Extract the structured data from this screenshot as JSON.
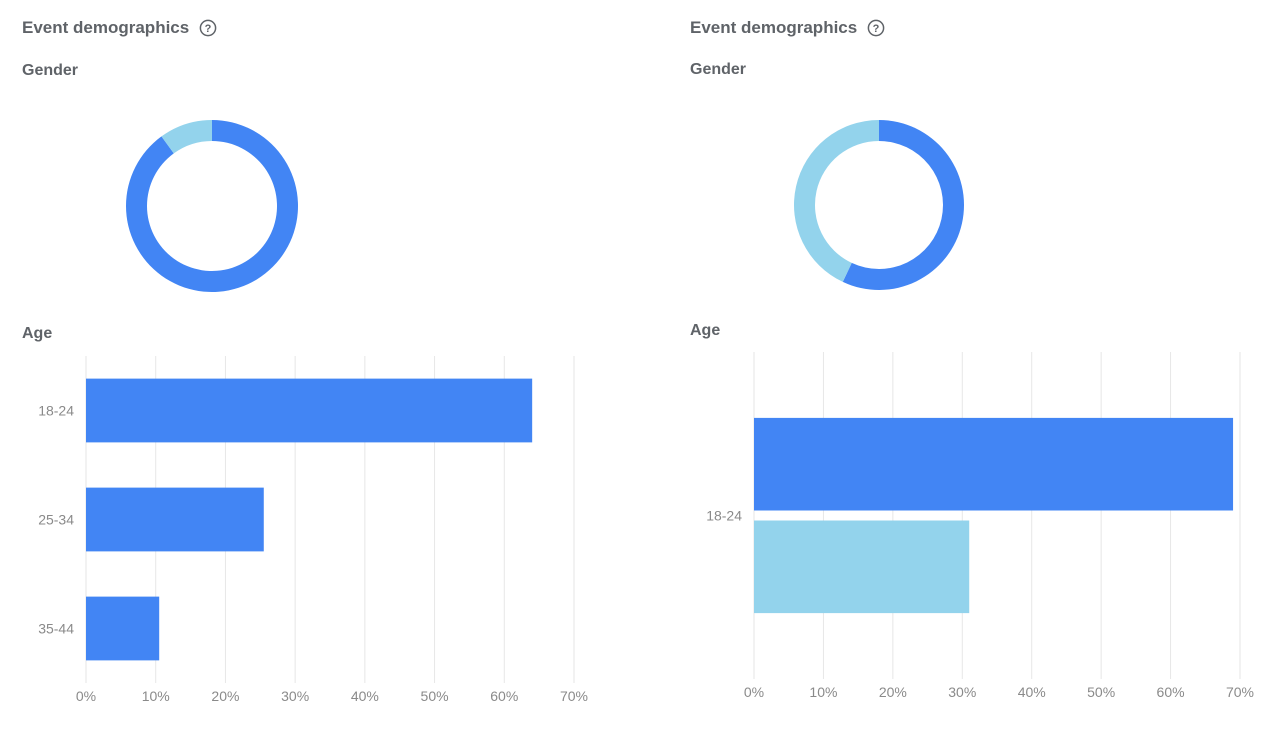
{
  "colors": {
    "primary": "#4285f4",
    "secondary": "#93d3ec",
    "grid": "#e6e6e6",
    "title": "#5f6368",
    "tick": "#8a8a8a"
  },
  "panels": [
    {
      "title": "Event demographics",
      "help_icon": "help-circle-icon",
      "gender_label": "Gender",
      "age_label": "Age"
    },
    {
      "title": "Event demographics",
      "help_icon": "help-circle-icon",
      "gender_label": "Gender",
      "age_label": "Age"
    }
  ],
  "chart_data": [
    {
      "type": "pie",
      "donut": true,
      "series": [
        {
          "values": [
            90,
            10
          ]
        }
      ]
    },
    {
      "type": "bar",
      "orientation": "horizontal",
      "categories": [
        "18-24",
        "25-34",
        "35-44"
      ],
      "series": [
        {
          "values": [
            64,
            25.5,
            10.5
          ]
        }
      ],
      "xlim": [
        0,
        70
      ],
      "xticks": [
        "0%",
        "10%",
        "20%",
        "30%",
        "40%",
        "50%",
        "60%",
        "70%"
      ],
      "grid": true
    },
    {
      "type": "pie",
      "donut": true,
      "series": [
        {
          "values": [
            57,
            43
          ]
        }
      ]
    },
    {
      "type": "bar",
      "orientation": "horizontal",
      "categories": [
        "18-24"
      ],
      "series": [
        {
          "values": [
            69
          ]
        },
        {
          "values": [
            31
          ]
        }
      ],
      "xlim": [
        0,
        70
      ],
      "xticks": [
        "0%",
        "10%",
        "20%",
        "30%",
        "40%",
        "50%",
        "60%",
        "70%"
      ],
      "grid": true
    }
  ]
}
